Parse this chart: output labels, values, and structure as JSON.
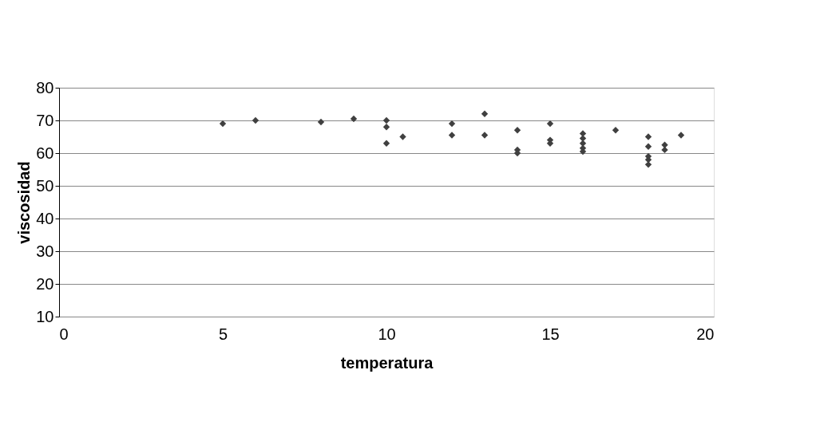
{
  "chart_data": {
    "type": "scatter",
    "xlabel": "temperatura",
    "ylabel": "viscosidad",
    "x": [
      5,
      6,
      8,
      9,
      10,
      10,
      10,
      10.5,
      12,
      12,
      13,
      13,
      14,
      14,
      14,
      15,
      15,
      15,
      16,
      16,
      16,
      16,
      16,
      17,
      18,
      18,
      18,
      18,
      18,
      18.5,
      18.5,
      19
    ],
    "series": [
      {
        "color": "#404040",
        "values": [
          69,
          70,
          69.5,
          70.5,
          70,
          68,
          63,
          65,
          69,
          65.5,
          72,
          65.5,
          67,
          61,
          60,
          69,
          64,
          63,
          66,
          64.5,
          63,
          61.5,
          60.5,
          67,
          65,
          62,
          59,
          58,
          56.5,
          62.5,
          61,
          65.5
        ]
      }
    ],
    "xlim": [
      0,
      20
    ],
    "xticks": [
      0,
      5,
      10,
      15,
      20
    ],
    "ylim": [
      10,
      80
    ],
    "yticks": [
      10,
      20,
      30,
      40,
      50,
      60,
      70,
      80
    ],
    "grid": "y",
    "marker": "diamond",
    "legend": false
  }
}
